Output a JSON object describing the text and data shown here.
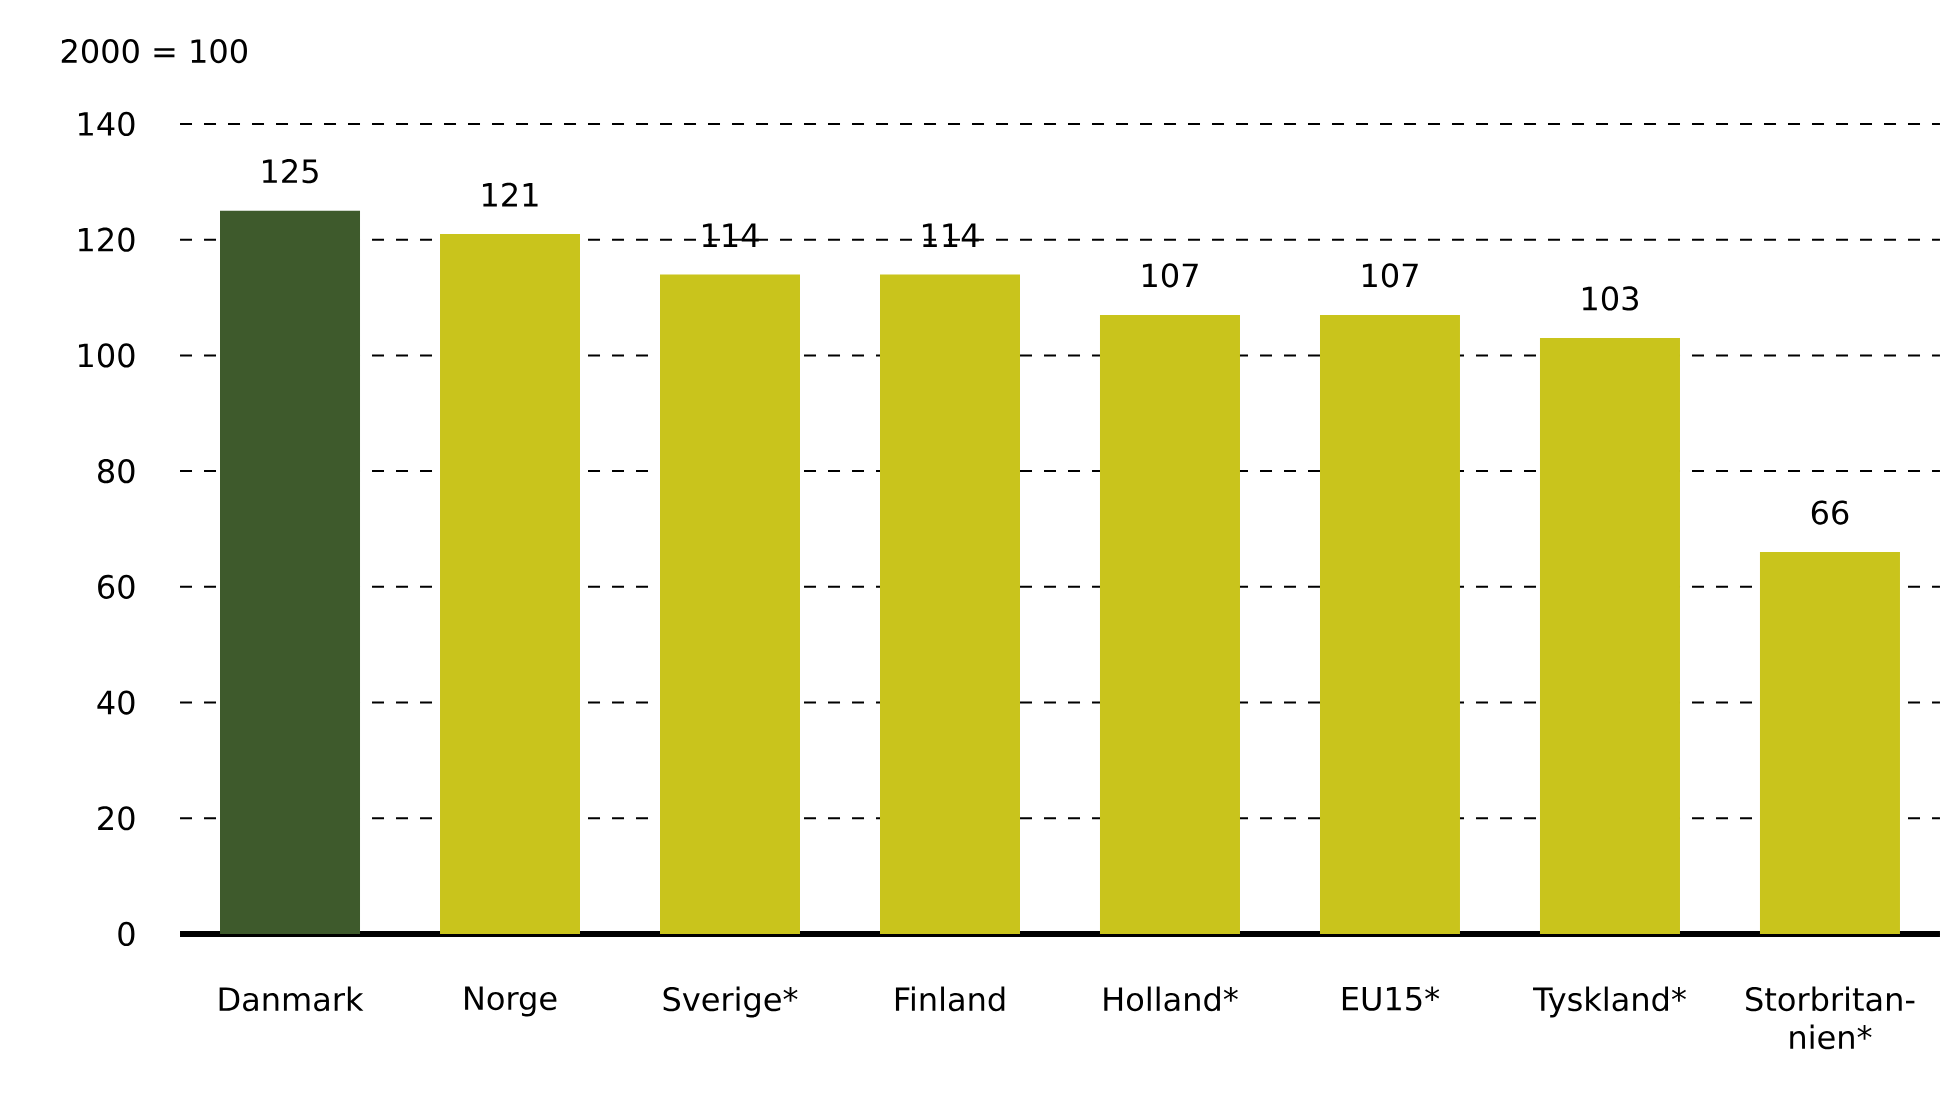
{
  "chart_data": {
    "type": "bar",
    "ylabel": "2000 = 100",
    "categories": [
      "Danmark",
      "Norge",
      "Sverige*",
      "Finland",
      "Holland*",
      "EU15*",
      "Tyskland*",
      "Storbritan-nien*"
    ],
    "values": [
      125,
      121,
      114,
      114,
      107,
      107,
      103,
      66
    ],
    "colors": [
      "#3e5a2c",
      "#c9c41c",
      "#c9c41c",
      "#c9c41c",
      "#c9c41c",
      "#c9c41c",
      "#c9c41c",
      "#c9c41c"
    ],
    "ylim": [
      0,
      140
    ],
    "yticks": [
      0,
      20,
      40,
      60,
      80,
      100,
      120,
      140
    ],
    "grid": "y",
    "data_labels": true
  }
}
